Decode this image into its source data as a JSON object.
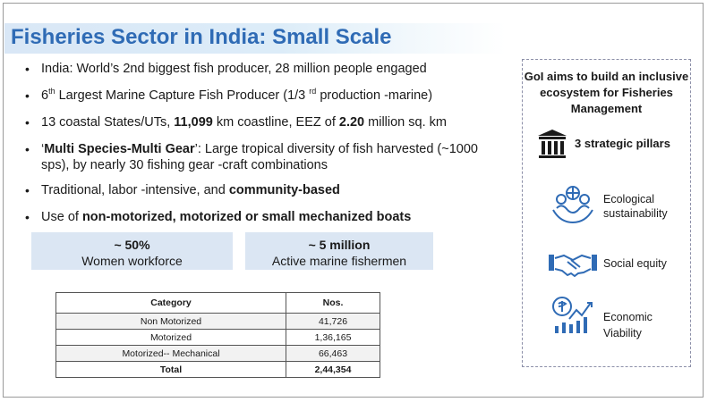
{
  "title": "Fisheries Sector in India: Small Scale",
  "bullets": {
    "b1": "India: World’s 2nd biggest fish producer, 28 million people engaged",
    "b2_pre": "6",
    "b2_sup": "th",
    "b2_mid": " Largest Marine Capture Fish Producer (1/3 ",
    "b2_sup2": "rd",
    "b2_post": " production -marine)",
    "b3_pre": "13 coastal States/UTs, ",
    "b3_km": "11,099",
    "b3_mid": " km coastline, EEZ of ",
    "b3_eez": "2.20",
    "b3_post": " million sq. km",
    "b4_quote_open": "‘",
    "b4_bold": "Multi Species-Multi Gear",
    "b4_rest": "’: Large tropical diversity of fish harvested (~1000 sps), by nearly 30 fishing gear -craft combinations",
    "b5_pre": "Traditional, labor -intensive, and ",
    "b5_bold": "community-based",
    "b6_pre": "Use of ",
    "b6_bold": "non-motorized, motorized or small mechanized boats"
  },
  "stats": [
    {
      "value": "~ 50%",
      "label": "Women workforce"
    },
    {
      "value": "~ 5 million",
      "label": "Active marine fishermen"
    }
  ],
  "table": {
    "headers": [
      "Category",
      "Nos."
    ],
    "rows": [
      [
        "Non Motorized",
        "41,726"
      ],
      [
        "Motorized",
        "1,36,165"
      ],
      [
        "Motorized-- Mechanical",
        "66,463"
      ]
    ],
    "total": [
      "Total",
      "2,44,354"
    ]
  },
  "panel": {
    "heading": "GoI aims to build an inclusive ecosystem for Fisheries Management",
    "pillars_label": "3 strategic pillars",
    "pillars_icon": "pillar-icon",
    "items": [
      {
        "icon": "ecology-icon",
        "label_l1": "Ecological",
        "label_l2": "sustainability"
      },
      {
        "icon": "handshake-icon",
        "label_l1": "Social equity",
        "label_l2": ""
      },
      {
        "icon": "economy-icon",
        "label_l1": "Economic",
        "label_l2": "Viability"
      }
    ]
  },
  "colors": {
    "title": "#2f6bb5",
    "accent_blue": "#2f6bb5",
    "stat_bg": "#dbe6f3"
  }
}
